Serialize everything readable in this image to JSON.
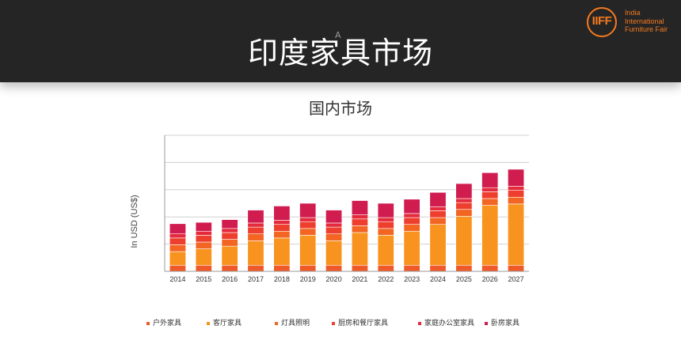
{
  "header": {
    "title": "印度家具市场",
    "caret": "A",
    "logo": {
      "mark": "IIFF",
      "lines": [
        "India",
        "International",
        "Furniture Fair"
      ]
    }
  },
  "chart_data": {
    "type": "bar",
    "stacked": true,
    "title": "国内市场",
    "xlabel": "",
    "ylabel": "In USD (US$)",
    "ylim": [
      0,
      100
    ],
    "grid": true,
    "legend_position": "bottom",
    "categories": [
      "2014",
      "2015",
      "2016",
      "2017",
      "2018",
      "2019",
      "2020",
      "2021",
      "2022",
      "2023",
      "2024",
      "2025",
      "2026",
      "2027"
    ],
    "series": [
      {
        "name": "户外家具",
        "color": "#f05a28",
        "values": [
          4.5,
          4.5,
          4.5,
          4.5,
          4.5,
          4.5,
          4.5,
          4.5,
          4.5,
          4.5,
          4.5,
          4.5,
          4.5,
          4.5
        ]
      },
      {
        "name": "客厅家具",
        "color": "#f7931e",
        "values": [
          10,
          12,
          14,
          18,
          20,
          22,
          18,
          24,
          22,
          25,
          30,
          36,
          44,
          45
        ]
      },
      {
        "name": "灯具照明",
        "color": "#f26522",
        "values": [
          5,
          5,
          5,
          5,
          5,
          5,
          5,
          5,
          5,
          5,
          5,
          5,
          5,
          5
        ]
      },
      {
        "name": "厨房和餐厅家具",
        "color": "#ee3f2e",
        "values": [
          5,
          5,
          5,
          5,
          5,
          5,
          5,
          5,
          5,
          5,
          5,
          5,
          5,
          5
        ]
      },
      {
        "name": "家庭办公室家具",
        "color": "#e52a3c",
        "values": [
          3,
          3,
          3,
          3,
          3,
          3,
          3,
          3,
          3,
          3,
          3,
          3,
          3,
          3
        ]
      },
      {
        "name": "卧房家具",
        "color": "#d01c4f",
        "values": [
          7.5,
          6.5,
          6.5,
          9.5,
          10.5,
          10.5,
          9.5,
          10.5,
          10.5,
          10.5,
          10.5,
          11,
          11,
          12.5
        ]
      }
    ]
  }
}
